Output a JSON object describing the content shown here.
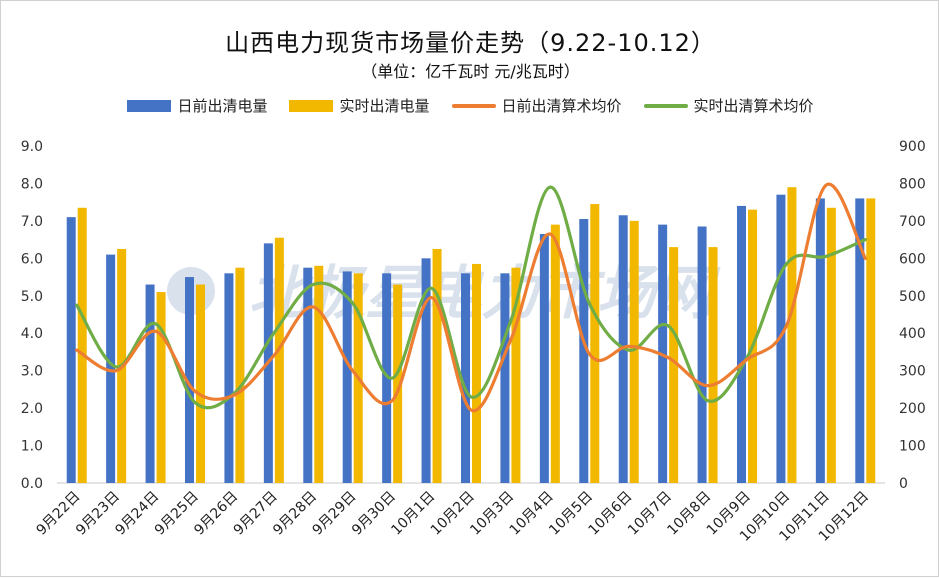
{
  "title": "山西电力现货市场量价走势（9.22-10.12）",
  "subtitle": "（单位：亿千瓦时 元/兆瓦时）",
  "watermark": "北极星电力市场网",
  "colors": {
    "day_ahead_volume": "#4472c4",
    "realtime_volume": "#f2b800",
    "day_ahead_price": "#ed7d31",
    "realtime_price": "#70ad47",
    "watermark": "#c9d4e6"
  },
  "legend": [
    {
      "label": "日前出清电量",
      "kind": "box",
      "color": "#4472c4"
    },
    {
      "label": "实时出清电量",
      "kind": "box",
      "color": "#f2b800"
    },
    {
      "label": "日前出清算术均价",
      "kind": "line",
      "color": "#ed7d31"
    },
    {
      "label": "实时出清算术均价",
      "kind": "line",
      "color": "#70ad47"
    }
  ],
  "chart_data": {
    "type": "bar",
    "combo": "bar+smooth-line",
    "title": "山西电力现货市场量价走势（9.22-10.12）",
    "subtitle": "（单位：亿千瓦时 元/兆瓦时）",
    "categories": [
      "9月22日",
      "9月23日",
      "9月24日",
      "9月25日",
      "9月26日",
      "9月27日",
      "9月28日",
      "9月29日",
      "9月30日",
      "10月1日",
      "10月2日",
      "10月3日",
      "10月4日",
      "10月5日",
      "10月6日",
      "10月7日",
      "10月8日",
      "10月9日",
      "10月10日",
      "10月11日",
      "10月12日"
    ],
    "y_left": {
      "ylim": [
        0,
        9
      ],
      "ticks": [
        "0.0",
        "1.0",
        "2.0",
        "3.0",
        "4.0",
        "5.0",
        "6.0",
        "7.0",
        "8.0",
        "9.0"
      ]
    },
    "y_right": {
      "ylim": [
        0,
        900
      ],
      "ticks": [
        "0",
        "100",
        "200",
        "300",
        "400",
        "500",
        "600",
        "700",
        "800",
        "900"
      ]
    },
    "grid": false,
    "legend_position": "top",
    "series": [
      {
        "name": "日前出清电量",
        "type": "bar",
        "axis": "left",
        "values": [
          7.1,
          6.1,
          5.3,
          5.5,
          5.6,
          6.4,
          5.75,
          5.65,
          5.6,
          6.0,
          5.6,
          5.6,
          6.65,
          7.05,
          7.15,
          6.9,
          6.85,
          7.4,
          7.7,
          7.6,
          7.6
        ]
      },
      {
        "name": "实时出清电量",
        "type": "bar",
        "axis": "left",
        "values": [
          7.35,
          6.25,
          5.1,
          5.3,
          5.75,
          6.55,
          5.8,
          5.6,
          5.3,
          6.25,
          5.85,
          5.75,
          6.9,
          7.45,
          7.0,
          6.3,
          6.3,
          7.3,
          7.9,
          7.35,
          7.6
        ]
      },
      {
        "name": "日前出清算术均价",
        "type": "line",
        "axis": "right",
        "values": [
          355,
          300,
          405,
          245,
          235,
          340,
          470,
          300,
          220,
          495,
          195,
          380,
          665,
          345,
          365,
          335,
          260,
          330,
          420,
          795,
          600
        ]
      },
      {
        "name": "实时出清算术均价",
        "type": "line",
        "axis": "right",
        "values": [
          475,
          310,
          425,
          215,
          240,
          400,
          530,
          480,
          280,
          520,
          230,
          430,
          790,
          480,
          355,
          420,
          220,
          335,
          585,
          605,
          650
        ]
      }
    ]
  }
}
